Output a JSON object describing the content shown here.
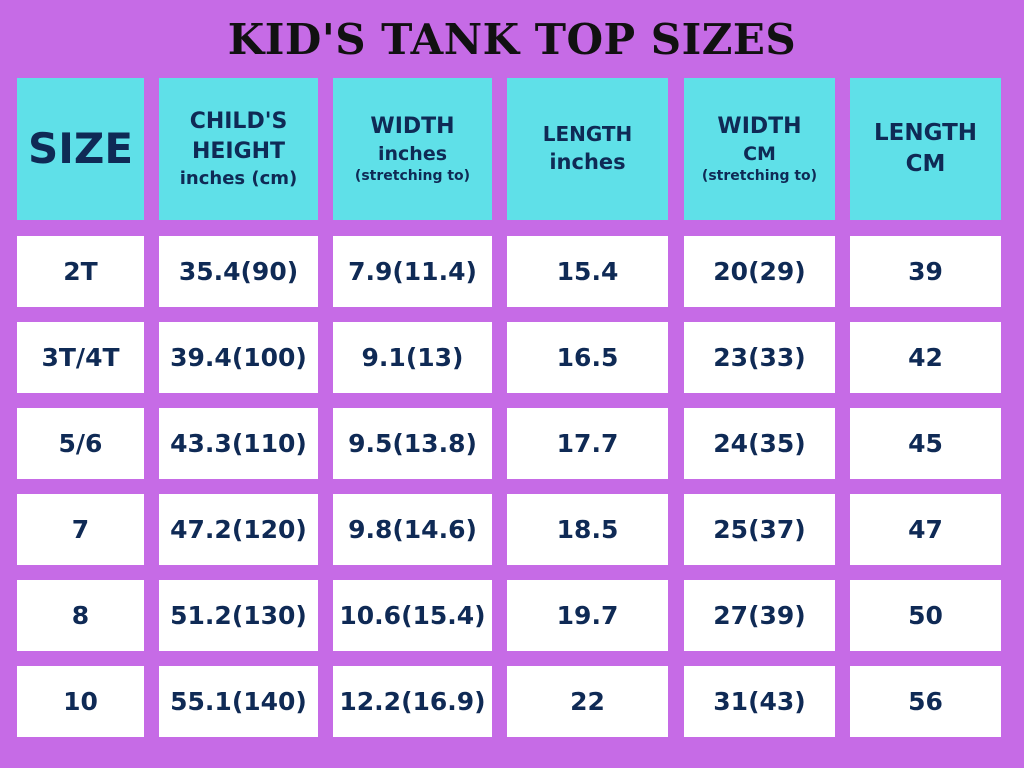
{
  "title": "KID'S TANK TOP SIZES",
  "colors": {
    "background": "#c66be6",
    "header_cell": "#5fe0e8",
    "data_cell": "#ffffff",
    "text": "#0f2a55",
    "title": "#111111"
  },
  "headers": [
    {
      "lines": [
        "SIZE"
      ]
    },
    {
      "lines": [
        "CHILD'S",
        "HEIGHT",
        "inches (cm)"
      ]
    },
    {
      "lines": [
        "WIDTH",
        "inches",
        "(stretching to)"
      ]
    },
    {
      "lines": [
        "LENGTH",
        "inches"
      ]
    },
    {
      "lines": [
        "WIDTH",
        "CM",
        "(stretching to)"
      ]
    },
    {
      "lines": [
        "LENGTH",
        "CM"
      ]
    }
  ],
  "rows": [
    [
      "2T",
      "35.4(90)",
      "7.9(11.4)",
      "15.4",
      "20(29)",
      "39"
    ],
    [
      "3T/4T",
      "39.4(100)",
      "9.1(13)",
      "16.5",
      "23(33)",
      "42"
    ],
    [
      "5/6",
      "43.3(110)",
      "9.5(13.8)",
      "17.7",
      "24(35)",
      "45"
    ],
    [
      "7",
      "47.2(120)",
      "9.8(14.6)",
      "18.5",
      "25(37)",
      "47"
    ],
    [
      "8",
      "51.2(130)",
      "10.6(15.4)",
      "19.7",
      "27(39)",
      "50"
    ],
    [
      "10",
      "55.1(140)",
      "12.2(16.9)",
      "22",
      "31(43)",
      "56"
    ]
  ]
}
